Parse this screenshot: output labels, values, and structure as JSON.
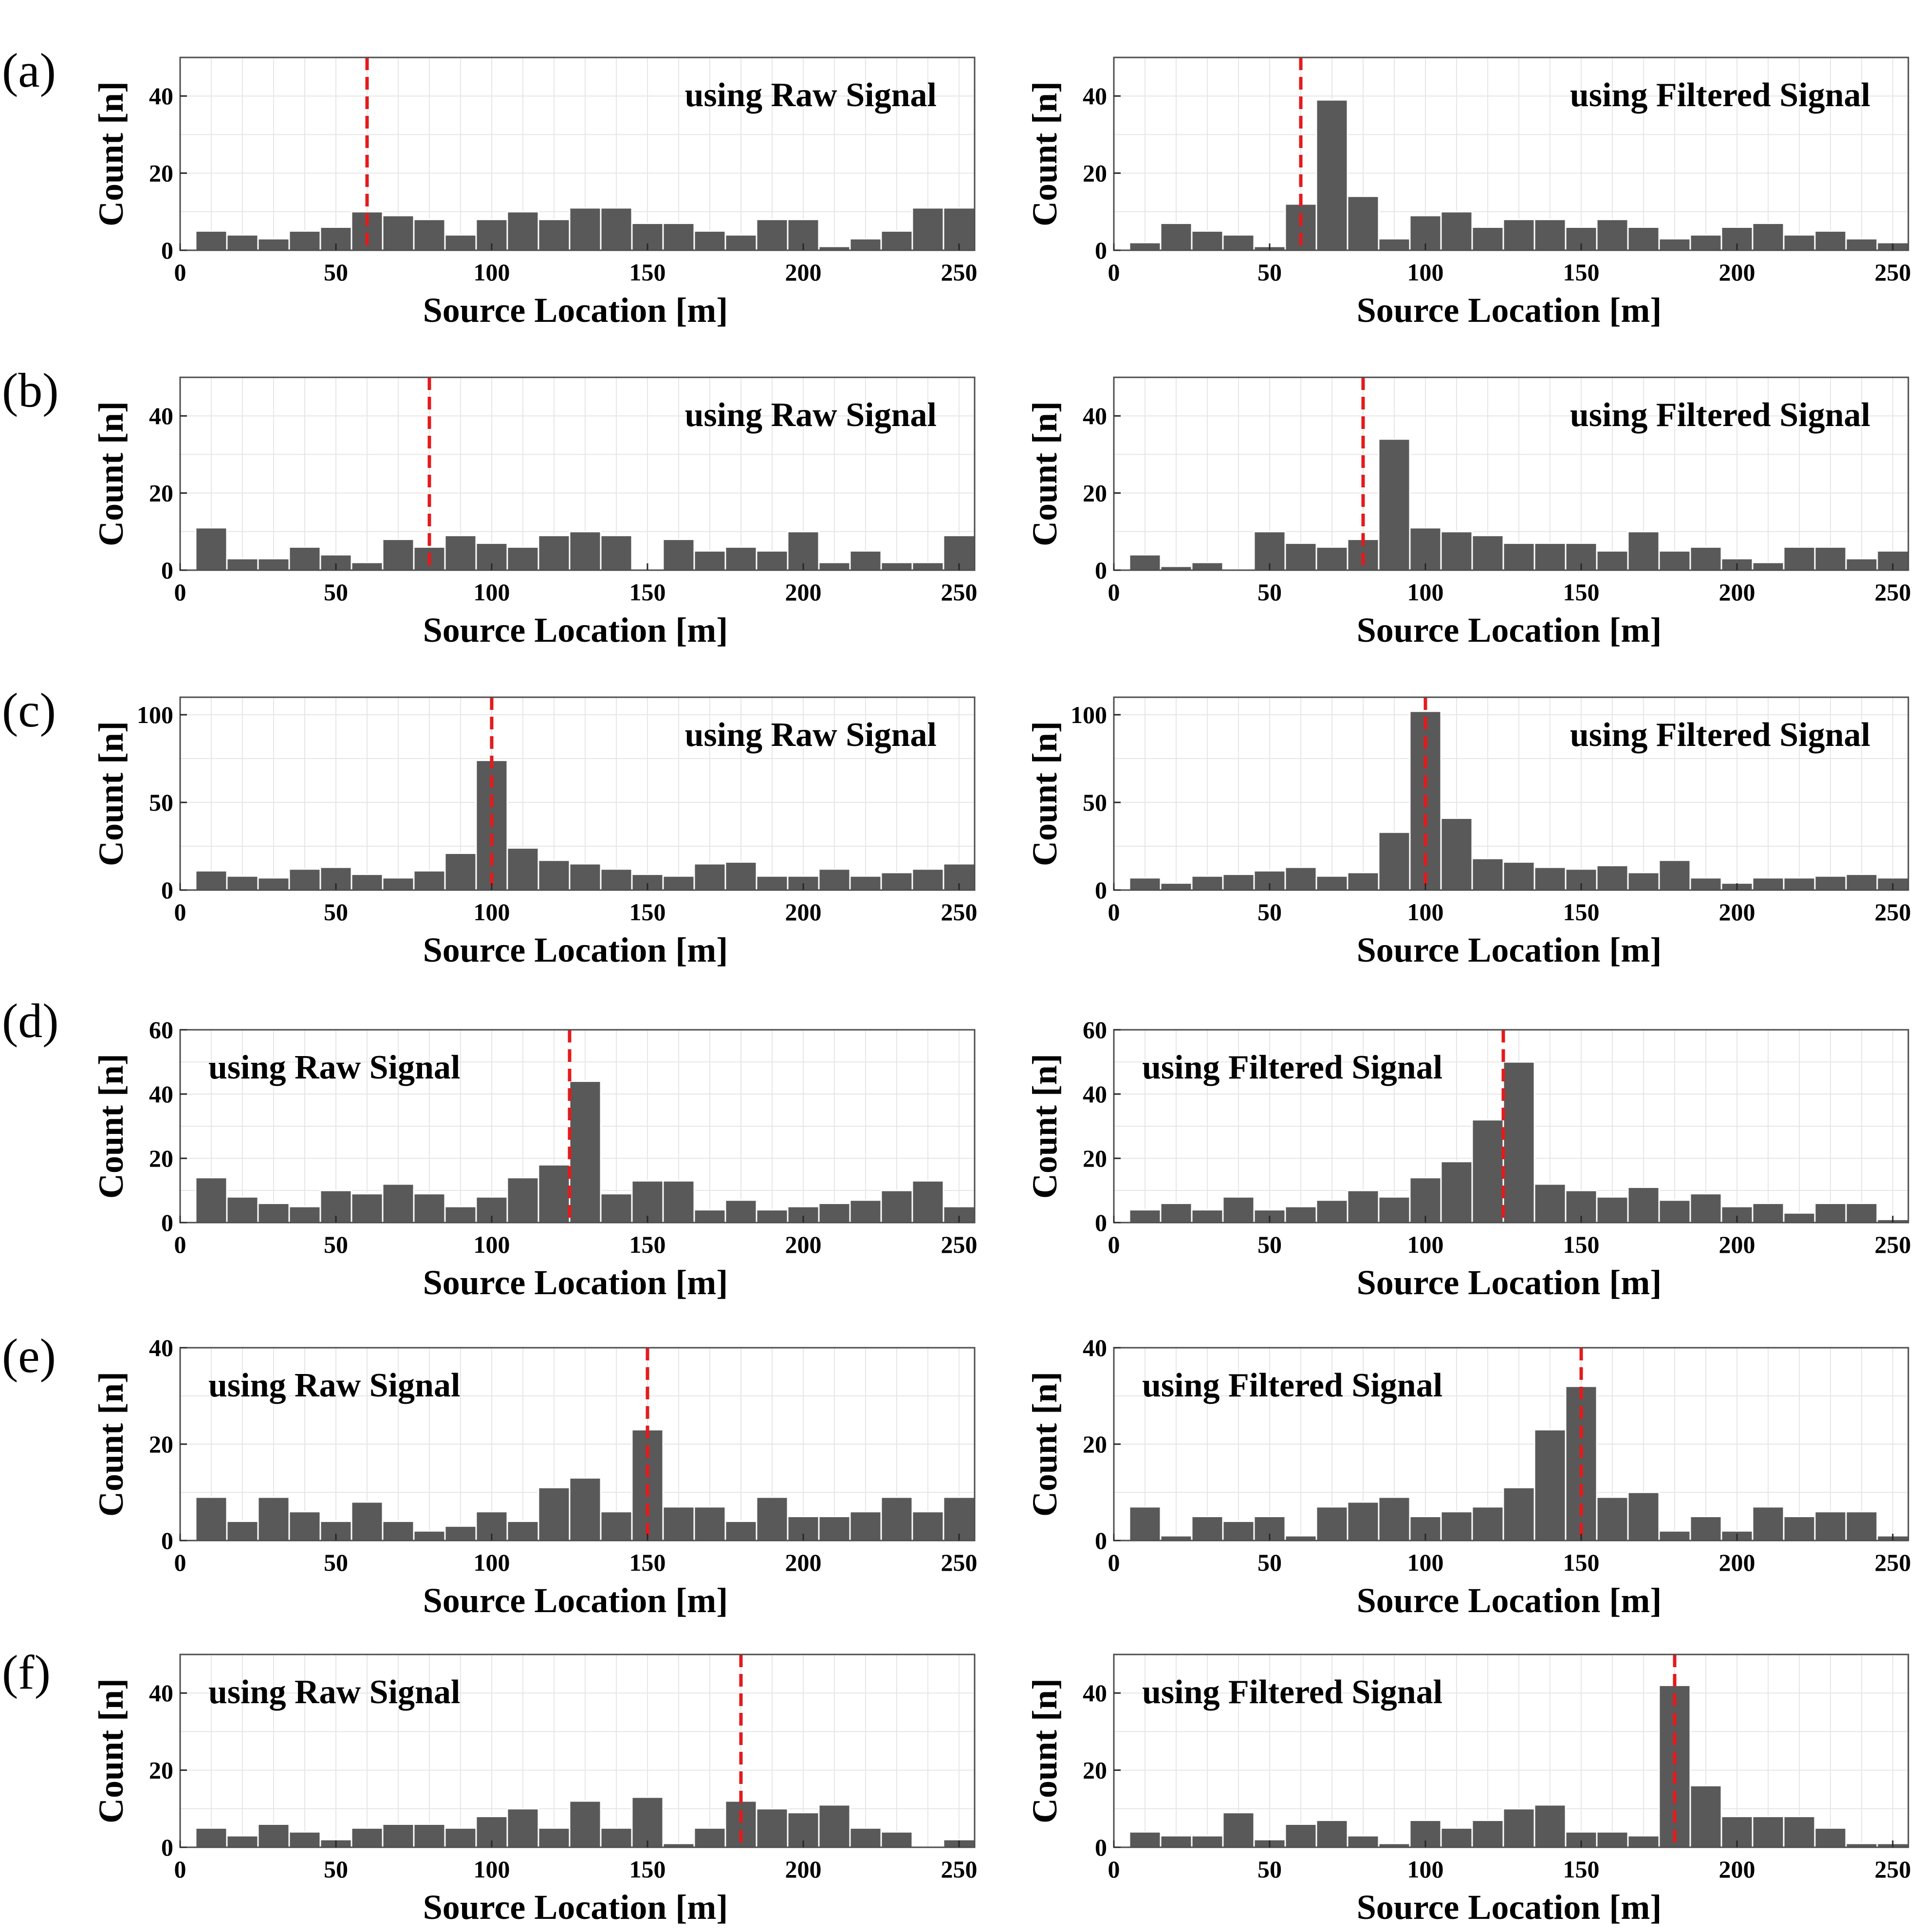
{
  "figure": {
    "panel_letters": [
      "(a)",
      "(b)",
      "(c)",
      "(d)",
      "(e)",
      "(f)"
    ],
    "colors": {
      "bar": "#595959",
      "bar_edge": "#ffffff",
      "marker": "#e41a1c",
      "grid": "#e6e6e6",
      "axis": "#4d4d4d"
    }
  },
  "chart_data": [
    {
      "type": "bar",
      "panel": "(a)",
      "xlabel": "Source Location [m]",
      "ylabel": "Count [n]",
      "annotation": "using Raw Signal",
      "annotation_pos": "top-right",
      "xlim": [
        0,
        255
      ],
      "ylim": [
        0,
        50
      ],
      "xticks": [
        0,
        50,
        100,
        150,
        200,
        250
      ],
      "yticks": [
        0,
        20,
        40
      ],
      "bin_start": 5,
      "bin_width": 10,
      "marker_x": 60,
      "grid": true,
      "values": [
        5,
        4,
        3,
        5,
        6,
        10,
        9,
        8,
        4,
        8,
        10,
        8,
        11,
        11,
        7,
        7,
        5,
        4,
        8,
        8,
        1,
        3,
        5,
        11,
        11
      ]
    },
    {
      "type": "bar",
      "panel": "(a)",
      "xlabel": "Source Location [m]",
      "ylabel": "Count [n]",
      "annotation": "using Filtered Signal",
      "annotation_pos": "top-right",
      "xlim": [
        0,
        255
      ],
      "ylim": [
        0,
        50
      ],
      "xticks": [
        0,
        50,
        100,
        150,
        200,
        250
      ],
      "yticks": [
        0,
        20,
        40
      ],
      "bin_start": 5,
      "bin_width": 10,
      "marker_x": 60,
      "grid": true,
      "values": [
        2,
        7,
        5,
        4,
        1,
        12,
        39,
        14,
        3,
        9,
        10,
        6,
        8,
        8,
        6,
        8,
        6,
        3,
        4,
        6,
        7,
        4,
        5,
        3,
        2
      ]
    },
    {
      "type": "bar",
      "panel": "(b)",
      "xlabel": "Source Location [m]",
      "ylabel": "Count [n]",
      "annotation": "using Raw Signal",
      "annotation_pos": "top-right",
      "xlim": [
        0,
        255
      ],
      "ylim": [
        0,
        50
      ],
      "xticks": [
        0,
        50,
        100,
        150,
        200,
        250
      ],
      "yticks": [
        0,
        20,
        40
      ],
      "bin_start": 5,
      "bin_width": 10,
      "marker_x": 80,
      "grid": true,
      "values": [
        11,
        3,
        3,
        6,
        4,
        2,
        8,
        6,
        9,
        7,
        6,
        9,
        10,
        9,
        0,
        8,
        5,
        6,
        5,
        10,
        2,
        5,
        2,
        2,
        9
      ]
    },
    {
      "type": "bar",
      "panel": "(b)",
      "xlabel": "Source Location [m]",
      "ylabel": "Count [n]",
      "annotation": "using Filtered Signal",
      "annotation_pos": "top-right",
      "xlim": [
        0,
        255
      ],
      "ylim": [
        0,
        50
      ],
      "xticks": [
        0,
        50,
        100,
        150,
        200,
        250
      ],
      "yticks": [
        0,
        20,
        40
      ],
      "bin_start": 5,
      "bin_width": 10,
      "marker_x": 80,
      "grid": true,
      "values": [
        4,
        1,
        2,
        0,
        10,
        7,
        6,
        8,
        34,
        11,
        10,
        9,
        7,
        7,
        7,
        5,
        10,
        5,
        6,
        3,
        2,
        6,
        6,
        3,
        5
      ]
    },
    {
      "type": "bar",
      "panel": "(c)",
      "xlabel": "Source Location [m]",
      "ylabel": "Count [n]",
      "annotation": "using Raw Signal",
      "annotation_pos": "top-right",
      "xlim": [
        0,
        255
      ],
      "ylim": [
        0,
        110
      ],
      "xticks": [
        0,
        50,
        100,
        150,
        200,
        250
      ],
      "yticks": [
        0,
        50,
        100
      ],
      "bin_start": 5,
      "bin_width": 10,
      "marker_x": 100,
      "grid": true,
      "values": [
        11,
        8,
        7,
        12,
        13,
        9,
        7,
        11,
        21,
        74,
        24,
        17,
        15,
        12,
        9,
        8,
        15,
        16,
        8,
        8,
        12,
        8,
        10,
        12,
        15
      ]
    },
    {
      "type": "bar",
      "panel": "(c)",
      "xlabel": "Source Location [m]",
      "ylabel": "Count [n]",
      "annotation": "using Filtered Signal",
      "annotation_pos": "top-right",
      "xlim": [
        0,
        255
      ],
      "ylim": [
        0,
        110
      ],
      "xticks": [
        0,
        50,
        100,
        150,
        200,
        250
      ],
      "yticks": [
        0,
        50,
        100
      ],
      "bin_start": 5,
      "bin_width": 10,
      "marker_x": 100,
      "grid": true,
      "values": [
        7,
        4,
        8,
        9,
        11,
        13,
        8,
        10,
        33,
        102,
        41,
        18,
        16,
        13,
        12,
        14,
        10,
        17,
        7,
        4,
        7,
        7,
        8,
        9,
        7
      ]
    },
    {
      "type": "bar",
      "panel": "(d)",
      "xlabel": "Source Location [m]",
      "ylabel": "Count [n]",
      "annotation": "using Raw Signal",
      "annotation_pos": "top-left",
      "xlim": [
        0,
        255
      ],
      "ylim": [
        0,
        60
      ],
      "xticks": [
        0,
        50,
        100,
        150,
        200,
        250
      ],
      "yticks": [
        0,
        20,
        40,
        60
      ],
      "bin_start": 5,
      "bin_width": 10,
      "marker_x": 125,
      "grid": true,
      "values": [
        14,
        8,
        6,
        5,
        10,
        9,
        12,
        9,
        5,
        8,
        14,
        18,
        44,
        9,
        13,
        13,
        4,
        7,
        4,
        5,
        6,
        7,
        10,
        13,
        5
      ]
    },
    {
      "type": "bar",
      "panel": "(d)",
      "xlabel": "Source Location [m]",
      "ylabel": "Count [n]",
      "annotation": "using Filtered Signal",
      "annotation_pos": "top-left",
      "xlim": [
        0,
        255
      ],
      "ylim": [
        0,
        60
      ],
      "xticks": [
        0,
        50,
        100,
        150,
        200,
        250
      ],
      "yticks": [
        0,
        20,
        40,
        60
      ],
      "bin_start": 5,
      "bin_width": 10,
      "marker_x": 125,
      "grid": true,
      "values": [
        4,
        6,
        4,
        8,
        4,
        5,
        7,
        10,
        8,
        14,
        19,
        32,
        50,
        12,
        10,
        8,
        11,
        7,
        9,
        5,
        6,
        3,
        6,
        6,
        1
      ]
    },
    {
      "type": "bar",
      "panel": "(e)",
      "xlabel": "Source Location [m]",
      "ylabel": "Count [n]",
      "annotation": "using Raw Signal",
      "annotation_pos": "top-left",
      "xlim": [
        0,
        255
      ],
      "ylim": [
        0,
        40
      ],
      "xticks": [
        0,
        50,
        100,
        150,
        200,
        250
      ],
      "yticks": [
        0,
        20,
        40
      ],
      "bin_start": 5,
      "bin_width": 10,
      "marker_x": 150,
      "grid": true,
      "values": [
        9,
        4,
        9,
        6,
        4,
        8,
        4,
        2,
        3,
        6,
        4,
        11,
        13,
        6,
        23,
        7,
        7,
        4,
        9,
        5,
        5,
        6,
        9,
        6,
        9
      ]
    },
    {
      "type": "bar",
      "panel": "(e)",
      "xlabel": "Source Location [m]",
      "ylabel": "Count [n]",
      "annotation": "using Filtered Signal",
      "annotation_pos": "top-left",
      "xlim": [
        0,
        255
      ],
      "ylim": [
        0,
        40
      ],
      "xticks": [
        0,
        50,
        100,
        150,
        200,
        250
      ],
      "yticks": [
        0,
        20,
        40
      ],
      "bin_start": 5,
      "bin_width": 10,
      "marker_x": 150,
      "grid": true,
      "values": [
        7,
        1,
        5,
        4,
        5,
        1,
        7,
        8,
        9,
        5,
        6,
        7,
        11,
        23,
        32,
        9,
        10,
        2,
        5,
        2,
        7,
        5,
        6,
        6,
        1
      ]
    },
    {
      "type": "bar",
      "panel": "(f)",
      "xlabel": "Source Location [m]",
      "ylabel": "Count [n]",
      "annotation": "using Raw Signal",
      "annotation_pos": "top-left",
      "xlim": [
        0,
        255
      ],
      "ylim": [
        0,
        50
      ],
      "xticks": [
        0,
        50,
        100,
        150,
        200,
        250
      ],
      "yticks": [
        0,
        20,
        40
      ],
      "bin_start": 5,
      "bin_width": 10,
      "marker_x": 180,
      "grid": true,
      "values": [
        5,
        3,
        6,
        4,
        2,
        5,
        6,
        6,
        5,
        8,
        10,
        5,
        12,
        5,
        13,
        1,
        5,
        12,
        10,
        9,
        11,
        5,
        4,
        0,
        2
      ]
    },
    {
      "type": "bar",
      "panel": "(f)",
      "xlabel": "Source Location [m]",
      "ylabel": "Count [n]",
      "annotation": "using Filtered Signal",
      "annotation_pos": "top-left",
      "xlim": [
        0,
        255
      ],
      "ylim": [
        0,
        50
      ],
      "xticks": [
        0,
        50,
        100,
        150,
        200,
        250
      ],
      "yticks": [
        0,
        20,
        40
      ],
      "bin_start": 5,
      "bin_width": 10,
      "marker_x": 180,
      "grid": true,
      "values": [
        4,
        3,
        3,
        9,
        2,
        6,
        7,
        3,
        1,
        7,
        5,
        7,
        10,
        11,
        4,
        4,
        3,
        42,
        16,
        8,
        8,
        8,
        5,
        1,
        1
      ]
    }
  ]
}
